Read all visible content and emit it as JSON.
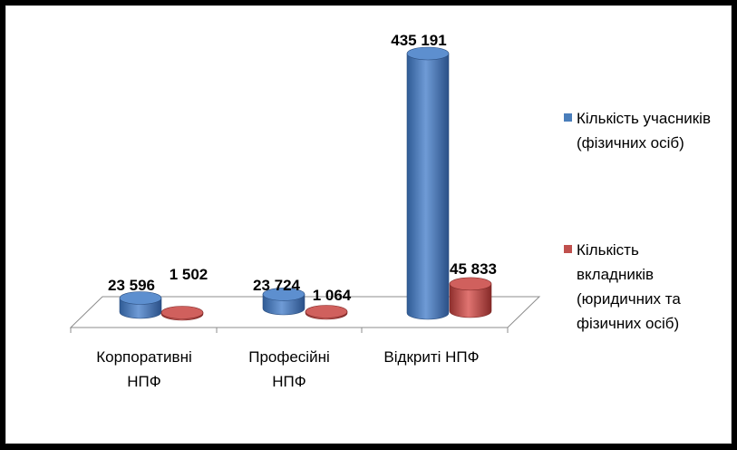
{
  "chart_data": {
    "type": "bar",
    "style": "3d-cylinder",
    "categories": [
      [
        "Корпоративні",
        "НПФ"
      ],
      [
        "Професійні",
        "НПФ"
      ],
      [
        "Відкриті НПФ"
      ]
    ],
    "series": [
      {
        "name": [
          "Кількість учасників",
          "(фізичних осіб)"
        ],
        "color": "#4a7ebb",
        "values": [
          23596,
          23724,
          435191
        ],
        "labels": [
          "23 596",
          "23 724",
          "435 191"
        ]
      },
      {
        "name": [
          "Кількість",
          "вкладників",
          "(юридичних та",
          "фізичних осіб)"
        ],
        "color": "#c0504d",
        "values": [
          1502,
          1064,
          45833
        ],
        "labels": [
          "1 502",
          "1 064",
          "45 833"
        ]
      }
    ],
    "legend": "right",
    "grid": false
  }
}
